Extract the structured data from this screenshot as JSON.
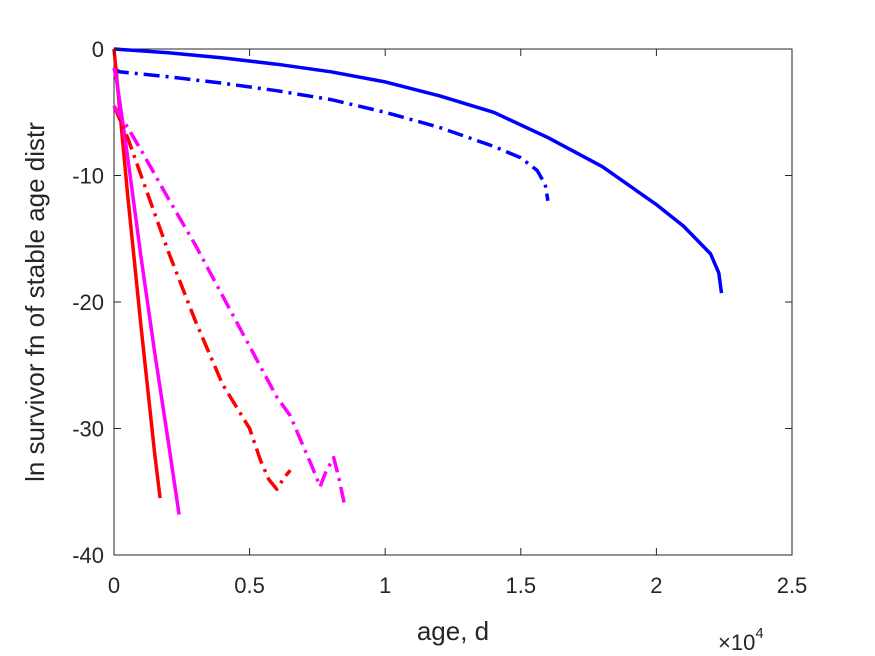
{
  "chart_data": {
    "type": "line",
    "xlabel": "age, d",
    "ylabel": "ln survivor fn of stable age distr",
    "x_exponent_label": {
      "base": "×10",
      "exp": "4"
    },
    "xlim": [
      0,
      25000
    ],
    "ylim": [
      -40,
      0
    ],
    "x_ticks": [
      0,
      5000,
      10000,
      15000,
      20000,
      25000
    ],
    "x_tick_labels": [
      "0",
      "0.5",
      "1",
      "1.5",
      "2",
      "2.5"
    ],
    "y_ticks": [
      0,
      -10,
      -20,
      -30,
      -40
    ],
    "y_tick_labels": [
      "0",
      "-10",
      "-20",
      "-30",
      "-40"
    ],
    "grid": false,
    "legend": "none",
    "series": [
      {
        "color": "#0000ff",
        "style": "solid",
        "x": [
          0,
          2000,
          4000,
          6000,
          8000,
          10000,
          12000,
          14000,
          16000,
          18000,
          20000,
          21000,
          22000,
          22300,
          22400
        ],
        "y": [
          0,
          -0.3,
          -0.7,
          -1.2,
          -1.8,
          -2.6,
          -3.7,
          -5.0,
          -7.0,
          -9.3,
          -12.3,
          -14.0,
          -16.2,
          -17.7,
          -19.3
        ]
      },
      {
        "color": "#0000ff",
        "style": "dashdot",
        "x": [
          0,
          200,
          2000,
          4000,
          6000,
          8000,
          10000,
          12000,
          14000,
          15000,
          15600,
          15900,
          16000
        ],
        "y": [
          -1.5,
          -1.8,
          -2.2,
          -2.7,
          -3.3,
          -4.0,
          -5.0,
          -6.2,
          -7.7,
          -8.6,
          -9.6,
          -10.7,
          -12.0
        ]
      },
      {
        "color": "#ff0000",
        "style": "solid",
        "x": [
          0,
          200,
          500,
          1000,
          1500,
          1700
        ],
        "y": [
          0,
          -4.5,
          -11.5,
          -22.0,
          -32.0,
          -35.5
        ]
      },
      {
        "color": "#ff00ff",
        "style": "solid",
        "x": [
          0,
          100,
          500,
          1000,
          1500,
          2000,
          2400
        ],
        "y": [
          -1.5,
          -2.5,
          -8.5,
          -16.5,
          -24.0,
          -31.0,
          -36.8
        ]
      },
      {
        "color": "#ff0000",
        "style": "dashdot",
        "x": [
          0,
          500,
          1000,
          2000,
          3000,
          4000,
          5000,
          5400,
          5700,
          6000,
          6300,
          6500
        ],
        "y": [
          -4.5,
          -7.0,
          -10.0,
          -16.0,
          -21.5,
          -26.5,
          -30.0,
          -32.5,
          -34.0,
          -34.8,
          -33.8,
          -33.3
        ]
      },
      {
        "color": "#ff00ff",
        "style": "dashdot",
        "x": [
          0,
          500,
          1000,
          2000,
          3000,
          4000,
          5000,
          6000,
          6500,
          7000,
          7300,
          7600,
          7800,
          8100,
          8300,
          8500
        ],
        "y": [
          -4.5,
          -6.2,
          -8.0,
          -11.8,
          -15.5,
          -19.5,
          -23.5,
          -27.5,
          -29.0,
          -31.5,
          -33.0,
          -34.6,
          -33.5,
          -32.3,
          -34.0,
          -36.0
        ]
      }
    ]
  }
}
